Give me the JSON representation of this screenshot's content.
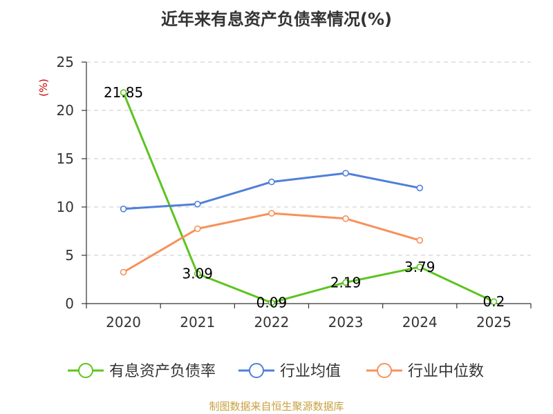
{
  "chart_data": {
    "type": "line",
    "title": "近年来有息资产负债率情况(%)",
    "ylabel": "(%)",
    "xlabel": "",
    "categories": [
      "2020",
      "2021",
      "2022",
      "2023",
      "2024",
      "2025"
    ],
    "ylim": [
      0,
      25
    ],
    "yticks": [
      0,
      5,
      10,
      15,
      20,
      25
    ],
    "grid": true,
    "legend_position": "bottom",
    "series": [
      {
        "name": "有息资产负债率",
        "color": "#5cc41e",
        "values": [
          21.85,
          3.09,
          0.09,
          2.19,
          3.79,
          0.2
        ],
        "labels": [
          "21.85",
          "3.09",
          "0.09",
          "2.19",
          "3.79",
          "0.2"
        ],
        "show_labels": true
      },
      {
        "name": "行业均值",
        "color": "#4f7fd9",
        "values": [
          9.8,
          10.3,
          12.6,
          13.5,
          11.97,
          null
        ],
        "show_labels": false
      },
      {
        "name": "行业中位数",
        "color": "#f7905a",
        "values": [
          3.25,
          7.75,
          9.35,
          8.8,
          6.55,
          null
        ],
        "show_labels": false
      }
    ],
    "source": "制图数据来自恒生聚源数据库"
  }
}
